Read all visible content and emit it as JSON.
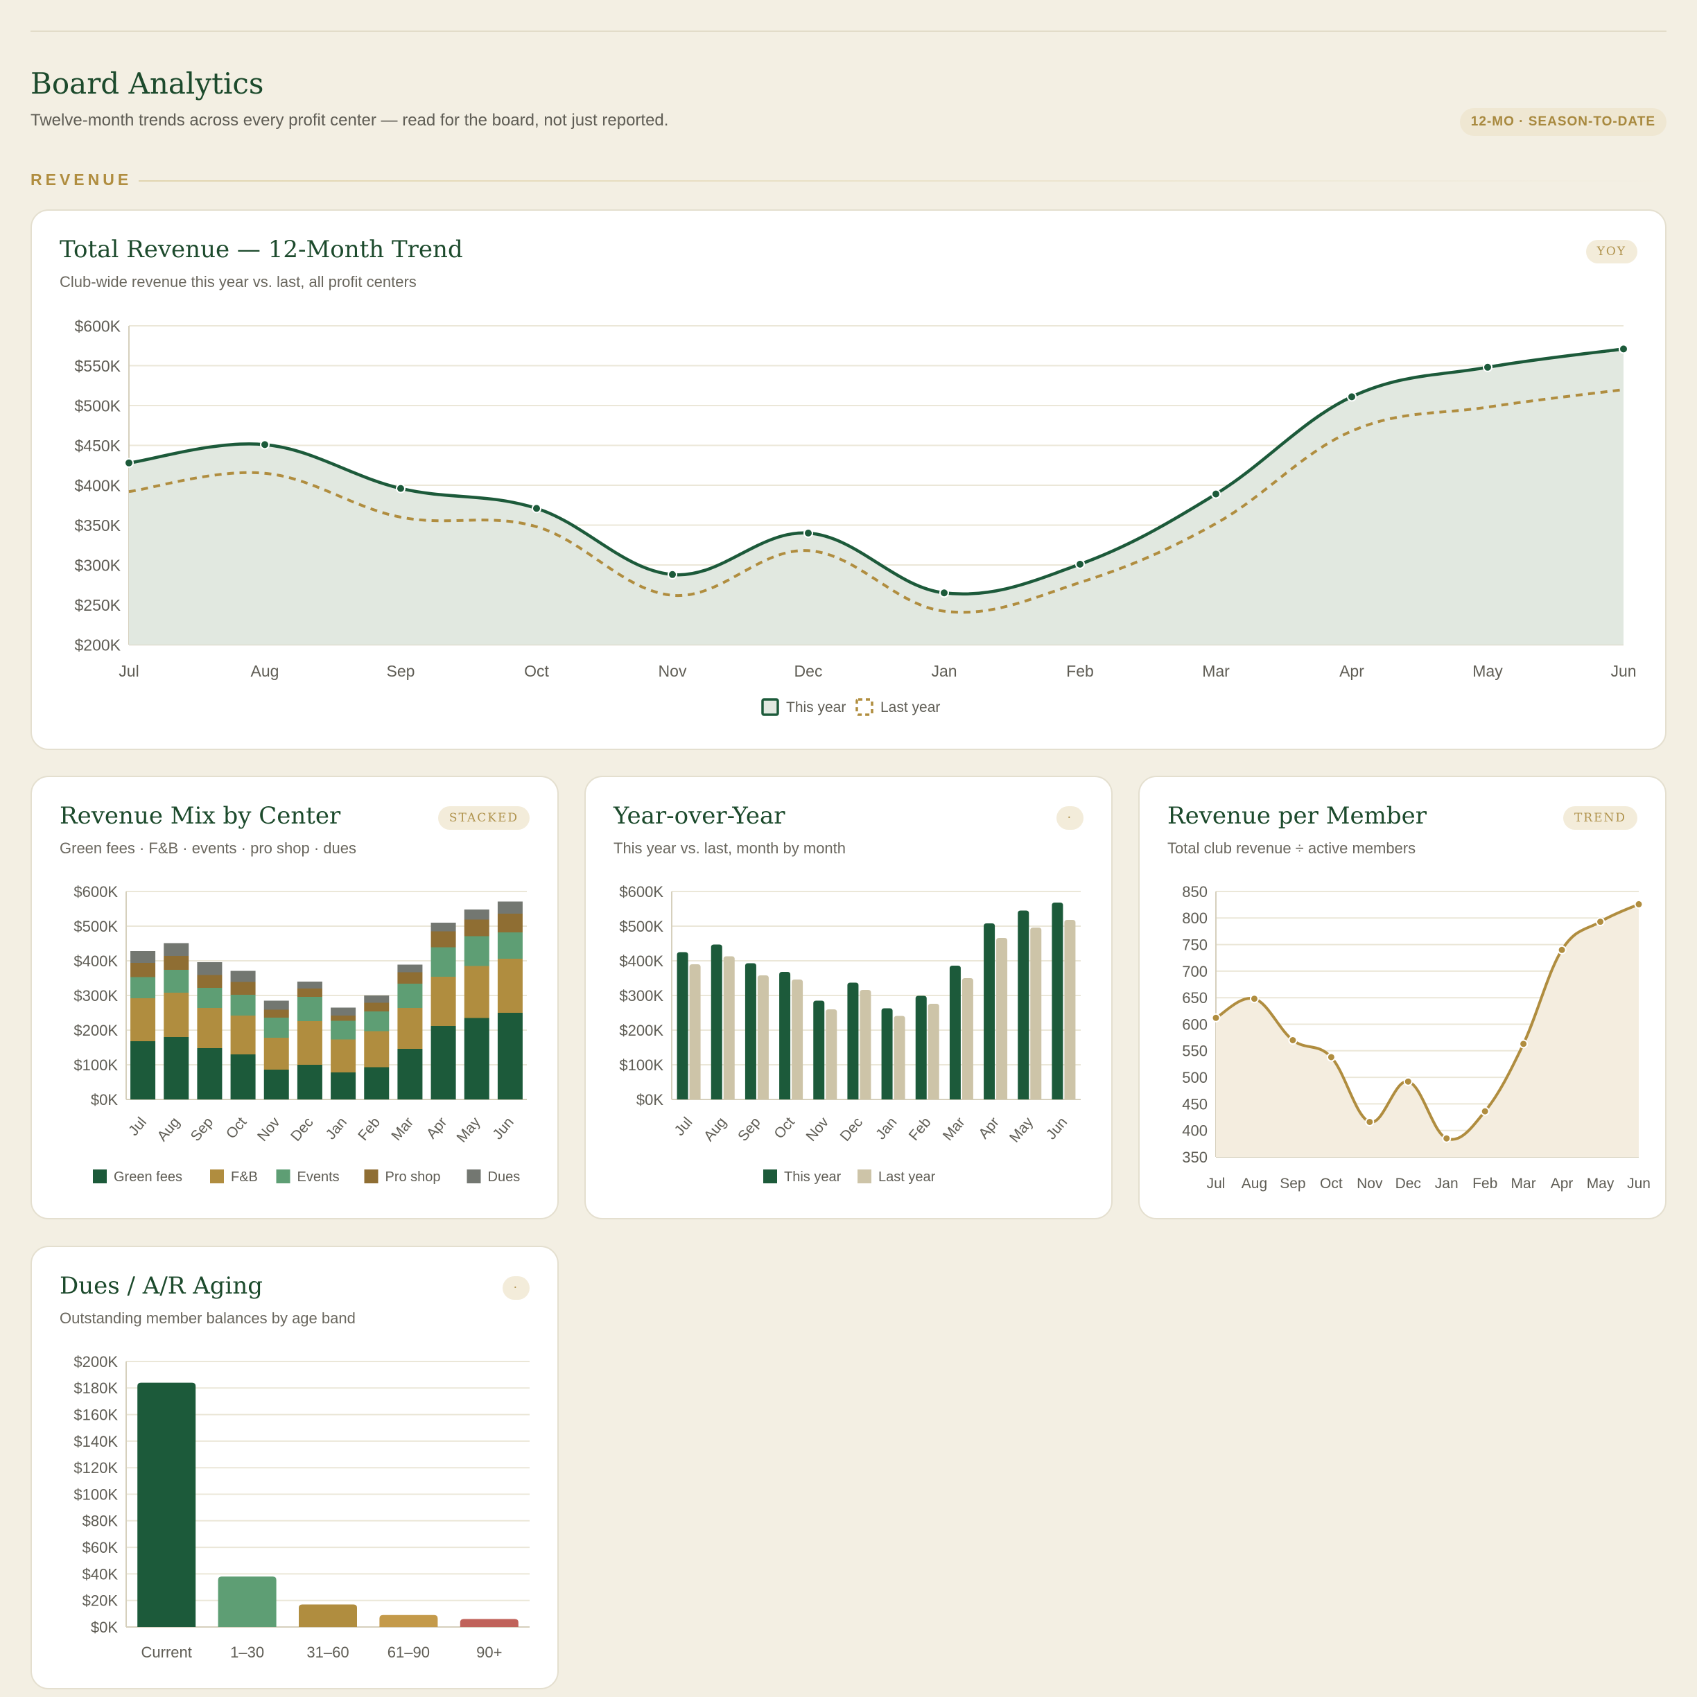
{
  "header": {
    "title": "Board Analytics",
    "subtitle": "Twelve-month trends across every profit center — read for the board, not just reported.",
    "period_badge": "12-MO · SEASON-TO-DATE",
    "section_label": "REVENUE"
  },
  "colors": {
    "green": "#1c5a3a",
    "gold": "#b08d3f",
    "events": "#5e9e74",
    "proshop": "#8f6e33",
    "dues": "#737771",
    "lastyear": "#cdc4a8",
    "ar90": "#c0625a"
  },
  "cards": {
    "total": {
      "title": "Total Revenue — 12-Month Trend",
      "subtitle": "Club-wide revenue this year vs. last, all profit centers",
      "badge": "YOY"
    },
    "mix": {
      "title": "Revenue Mix by Center",
      "subtitle": "Green fees · F&B · events · pro shop · dues",
      "badge": "STACKED"
    },
    "yoy": {
      "title": "Year-over-Year",
      "subtitle": "This year vs. last, month by month",
      "badge": "·"
    },
    "rpm": {
      "title": "Revenue per Member",
      "subtitle": "Total club revenue ÷ active members",
      "badge": "TREND"
    },
    "ar": {
      "title": "Dues / A/R Aging",
      "subtitle": "Outstanding member balances by age band",
      "badge": "·"
    }
  },
  "chart_data": [
    {
      "id": "total",
      "type": "area",
      "categories": [
        "Jul",
        "Aug",
        "Sep",
        "Oct",
        "Nov",
        "Dec",
        "Jan",
        "Feb",
        "Mar",
        "Apr",
        "May",
        "Jun"
      ],
      "series": [
        {
          "name": "This year",
          "values": [
            428,
            451,
            396,
            371,
            288,
            340,
            265,
            301,
            389,
            511,
            548,
            571
          ]
        },
        {
          "name": "Last year",
          "values": [
            392,
            415,
            360,
            348,
            262,
            318,
            242,
            278,
            352,
            468,
            498,
            520
          ]
        }
      ],
      "ylim": [
        200,
        600
      ],
      "yticks": [
        "$200K",
        "$250K",
        "$300K",
        "$350K",
        "$400K",
        "$450K",
        "$500K",
        "$550K",
        "$600K"
      ],
      "legend": "bottom-center",
      "grid": true
    },
    {
      "id": "mix",
      "type": "bar",
      "stacked": true,
      "categories": [
        "Jul",
        "Aug",
        "Sep",
        "Oct",
        "Nov",
        "Dec",
        "Jan",
        "Feb",
        "Mar",
        "Apr",
        "May",
        "Jun"
      ],
      "series": [
        {
          "name": "Green fees",
          "values": [
            168,
            180,
            148,
            130,
            86,
            100,
            78,
            93,
            146,
            212,
            235,
            250
          ]
        },
        {
          "name": "F&B",
          "values": [
            124,
            128,
            116,
            112,
            92,
            126,
            95,
            104,
            118,
            142,
            150,
            156
          ]
        },
        {
          "name": "Events",
          "values": [
            61,
            66,
            58,
            60,
            58,
            70,
            54,
            57,
            70,
            85,
            86,
            76
          ]
        },
        {
          "name": "Pro shop",
          "values": [
            41,
            40,
            37,
            37,
            23,
            24,
            15,
            25,
            33,
            46,
            48,
            54
          ]
        },
        {
          "name": "Dues",
          "values": [
            34,
            37,
            37,
            32,
            26,
            20,
            23,
            21,
            22,
            25,
            29,
            35
          ]
        }
      ],
      "ylim": [
        0,
        600
      ],
      "yticks": [
        "$0K",
        "$100K",
        "$200K",
        "$300K",
        "$400K",
        "$500K",
        "$600K"
      ],
      "legend": "bottom-center",
      "grid": true
    },
    {
      "id": "yoy",
      "type": "bar",
      "categories": [
        "Jul",
        "Aug",
        "Sep",
        "Oct",
        "Nov",
        "Dec",
        "Jan",
        "Feb",
        "Mar",
        "Apr",
        "May",
        "Jun"
      ],
      "series": [
        {
          "name": "This year",
          "values": [
            425,
            447,
            393,
            368,
            285,
            337,
            263,
            299,
            386,
            508,
            545,
            568
          ]
        },
        {
          "name": "Last year",
          "values": [
            390,
            413,
            358,
            346,
            260,
            316,
            241,
            276,
            350,
            466,
            496,
            518
          ]
        }
      ],
      "ylim": [
        0,
        600
      ],
      "yticks": [
        "$0K",
        "$100K",
        "$200K",
        "$300K",
        "$400K",
        "$500K",
        "$600K"
      ],
      "legend": "bottom-center",
      "grid": true
    },
    {
      "id": "rpm",
      "type": "line",
      "categories": [
        "Jul",
        "Aug",
        "Sep",
        "Oct",
        "Nov",
        "Dec",
        "Jan",
        "Feb",
        "Mar",
        "Apr",
        "May",
        "Jun"
      ],
      "series": [
        {
          "values": [
            612,
            648,
            570,
            538,
            416,
            492,
            385,
            436,
            563,
            740,
            793,
            826
          ]
        }
      ],
      "ylim": [
        350,
        850
      ],
      "yticks": [
        "350",
        "400",
        "450",
        "500",
        "550",
        "600",
        "650",
        "700",
        "750",
        "800",
        "850"
      ],
      "grid": true
    },
    {
      "id": "ar",
      "type": "bar",
      "categories": [
        "Current",
        "1–30",
        "31–60",
        "61–90",
        "90+"
      ],
      "values": [
        184,
        38,
        17,
        9,
        6
      ],
      "ylim": [
        0,
        200
      ],
      "yticks": [
        "$0K",
        "$20K",
        "$40K",
        "$60K",
        "$80K",
        "$100K",
        "$120K",
        "$140K",
        "$160K",
        "$180K",
        "$200K"
      ],
      "grid": true
    }
  ]
}
